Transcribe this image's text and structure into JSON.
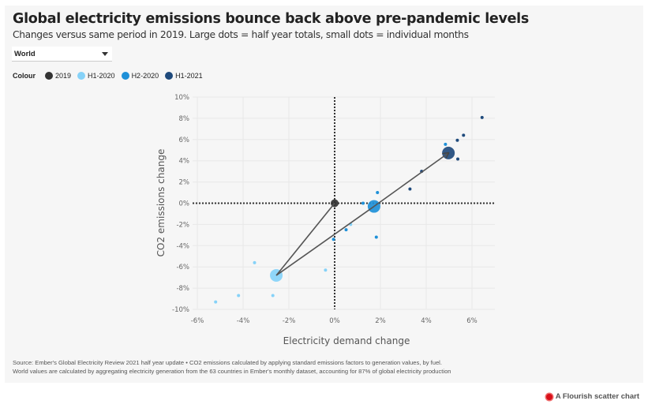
{
  "header": {
    "title": "Global electricity emissions bounce back above pre-pandemic levels",
    "subtitle": "Changes versus same period in 2019. Large dots = half year totals, small dots = individual months"
  },
  "filter": {
    "selected": "World"
  },
  "legend": {
    "label": "Colour",
    "items": [
      {
        "name": "2019",
        "color": "#333333"
      },
      {
        "name": "H1-2020",
        "color": "#86d2f8"
      },
      {
        "name": "H2-2020",
        "color": "#1e90d8"
      },
      {
        "name": "H1-2021",
        "color": "#1f4a7c"
      }
    ]
  },
  "footer": {
    "line1": "Source: Ember's Global Electricity Review 2021 half year update • CO2 emissions calculated by applying standard emissions factors to generation values, by fuel.",
    "line2": "World values are calculated by aggregating electricity generation from the 63 countries in Ember's monthly dataset, accounting for 87% of global electricity production"
  },
  "credit": {
    "label": "A Flourish scatter chart"
  },
  "chart_data": {
    "type": "scatter",
    "title": "Global electricity emissions bounce back above pre-pandemic levels",
    "xlabel": "Electricity demand change",
    "ylabel": "CO2 emissions change",
    "xlim": [
      -6.2,
      7.0
    ],
    "ylim": [
      -10,
      10
    ],
    "xticks": [
      -6,
      -4,
      -2,
      0,
      2,
      4,
      6
    ],
    "yticks": [
      -10,
      -8,
      -6,
      -4,
      -2,
      0,
      2,
      4,
      6,
      8,
      10
    ],
    "tick_suffix": "%",
    "grid": true,
    "reference_lines": {
      "x": 0,
      "y": 0,
      "style": "dotted"
    },
    "legend_position": "top-left",
    "series": [
      {
        "name": "2019",
        "color": "#333333",
        "totals": [
          {
            "x": 0.0,
            "y": 0.0
          }
        ],
        "months": []
      },
      {
        "name": "H1-2020",
        "color": "#86d2f8",
        "totals": [
          {
            "x": -2.55,
            "y": -6.8
          }
        ],
        "months": [
          {
            "x": -3.5,
            "y": -5.6
          },
          {
            "x": -4.2,
            "y": -8.7
          },
          {
            "x": -5.2,
            "y": -9.3
          },
          {
            "x": -2.7,
            "y": -8.7
          },
          {
            "x": -0.4,
            "y": -6.3
          },
          {
            "x": 0.7,
            "y": -2.0
          }
        ]
      },
      {
        "name": "H2-2020",
        "color": "#1e90d8",
        "totals": [
          {
            "x": 1.72,
            "y": -0.3
          }
        ],
        "months": [
          {
            "x": -0.05,
            "y": -3.4
          },
          {
            "x": 0.5,
            "y": -2.5
          },
          {
            "x": 1.24,
            "y": 0.0
          },
          {
            "x": 1.87,
            "y": 1.0
          },
          {
            "x": 1.82,
            "y": -3.2
          },
          {
            "x": 4.84,
            "y": 5.55
          }
        ]
      },
      {
        "name": "H1-2021",
        "color": "#1f4a7c",
        "totals": [
          {
            "x": 4.97,
            "y": 4.73
          }
        ],
        "months": [
          {
            "x": 3.29,
            "y": 1.34
          },
          {
            "x": 3.8,
            "y": 3.0
          },
          {
            "x": 5.36,
            "y": 5.93
          },
          {
            "x": 5.63,
            "y": 6.4
          },
          {
            "x": 6.44,
            "y": 8.08
          },
          {
            "x": 5.38,
            "y": 4.16
          }
        ]
      }
    ],
    "trajectory": [
      "2019",
      "H1-2020",
      "H2-2020",
      "H1-2021"
    ]
  }
}
